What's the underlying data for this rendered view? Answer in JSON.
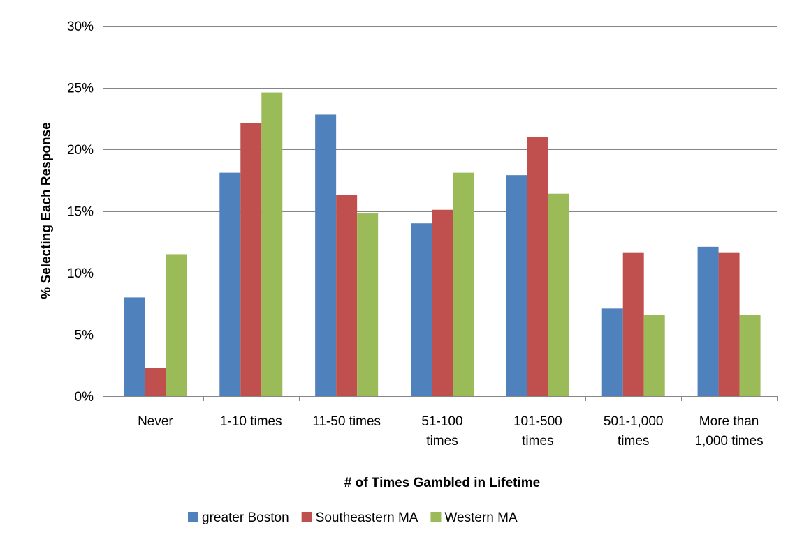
{
  "chart_data": {
    "type": "bar",
    "title": "",
    "xlabel": "# of Times Gambled in Lifetime",
    "ylabel": "% Selecting Each Response",
    "categories": [
      [
        "Never"
      ],
      [
        "1-10 times"
      ],
      [
        "11-50 times"
      ],
      [
        "51-100",
        "times"
      ],
      [
        "101-500",
        "times"
      ],
      [
        "501-1,000",
        "times"
      ],
      [
        "More than",
        "1,000 times"
      ]
    ],
    "series": [
      {
        "name": "greater Boston",
        "color": "#4f81bd",
        "values": [
          8.0,
          18.1,
          22.8,
          14.0,
          17.9,
          7.1,
          12.1
        ]
      },
      {
        "name": "Southeastern MA",
        "color": "#c0504d",
        "values": [
          2.3,
          22.1,
          16.3,
          15.1,
          21.0,
          11.6,
          11.6
        ]
      },
      {
        "name": "Western MA",
        "color": "#9bbb59",
        "values": [
          11.5,
          24.6,
          14.8,
          18.1,
          16.4,
          6.6,
          6.6
        ]
      }
    ],
    "yticks": [
      0,
      5,
      10,
      15,
      20,
      25,
      30
    ],
    "ytick_labels": [
      "0%",
      "5%",
      "10%",
      "15%",
      "20%",
      "25%",
      "30%"
    ],
    "ylim": [
      0,
      30
    ],
    "grid": true,
    "legend_position": "bottom"
  }
}
